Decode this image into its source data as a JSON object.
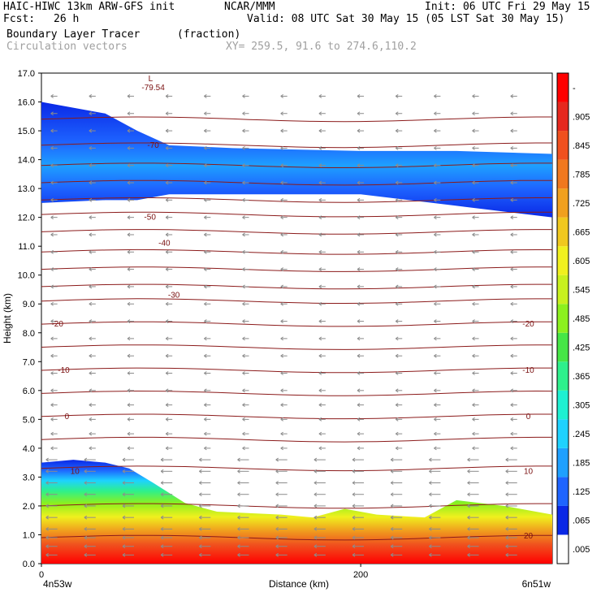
{
  "header": {
    "model": "HAIC-HIWC 13km ARW-GFS init",
    "org": "NCAR/MMM",
    "init": "Init: 06 UTC Fri 29 May 15",
    "fcst_label": "Fcst:",
    "fcst_value": "26 h",
    "valid": "Valid: 08 UTC Sat 30 May 15 (05 LST Sat 30 May 15)",
    "field": "Boundary Layer Tracer",
    "units": "(fraction)",
    "vectors": "Circulation vectors",
    "xy": "XY= 259.5, 91.6 to 274.6,110.2"
  },
  "chart_data": {
    "type": "heatmap",
    "title": "Boundary Layer Tracer",
    "xlabel": "Distance (km)",
    "ylabel": "Height (km)",
    "xlim": [
      0,
      320
    ],
    "ylim": [
      0.0,
      17.0
    ],
    "x_ticks": [
      0,
      200
    ],
    "y_ticks": [
      0.0,
      1.0,
      2.0,
      3.0,
      4.0,
      5.0,
      6.0,
      7.0,
      8.0,
      9.0,
      10.0,
      11.0,
      12.0,
      13.0,
      14.0,
      15.0,
      16.0,
      17.0
    ],
    "y_tick_labels": [
      "0.0",
      "1.0",
      "2.0",
      "3.0",
      "4.0",
      "5.0",
      "6.0",
      "7.0",
      "8.0",
      "9.0",
      "10.0",
      "11.0",
      "12.0",
      "13.0",
      "14.0",
      "15.0",
      "16.0",
      "17.0"
    ],
    "x_tick_labels": [
      "0",
      "200"
    ],
    "endpoint_labels": {
      "left": "4n53w",
      "right": "6n51w"
    },
    "colorbar": {
      "labels": [
        ".005",
        ".065",
        ".125",
        ".185",
        ".245",
        ".305",
        ".365",
        ".425",
        ".485",
        ".545",
        ".605",
        ".665",
        ".725",
        ".785",
        ".845",
        ".905",
        "-"
      ],
      "colors": [
        "#ffffff",
        "#0a28e6",
        "#1e64ff",
        "#1ea0ff",
        "#1ed2ff",
        "#1ef0d2",
        "#2ef08c",
        "#46e646",
        "#8cf01e",
        "#c8f01e",
        "#f0f01e",
        "#f0c81e",
        "#f0a01e",
        "#f0781e",
        "#f0501e",
        "#e6281e",
        "#ff0000"
      ]
    },
    "temperature_contours": {
      "units": "C",
      "levels": [
        {
          "label": "-79.54",
          "x": 70,
          "y": 16.5
        },
        {
          "label": "-70",
          "x": 70,
          "y": 14.5
        },
        {
          "label": "-50",
          "x": 68,
          "y": 12.0
        },
        {
          "label": "-40",
          "x": 77,
          "y": 11.1
        },
        {
          "label": "-30",
          "x": 83,
          "y": 9.3
        },
        {
          "label": "-20",
          "x": 10,
          "y": 8.3
        },
        {
          "label": "-20",
          "x": 305,
          "y": 8.3
        },
        {
          "label": "-10",
          "x": 14,
          "y": 6.7
        },
        {
          "label": "-10",
          "x": 305,
          "y": 6.7
        },
        {
          "label": "0",
          "x": 16,
          "y": 5.1
        },
        {
          "label": "0",
          "x": 305,
          "y": 5.1
        },
        {
          "label": "10",
          "x": 21,
          "y": 3.2
        },
        {
          "label": "10",
          "x": 305,
          "y": 3.2
        },
        {
          "label": "20",
          "x": 305,
          "y": 0.95
        }
      ],
      "low_marker": "L"
    },
    "tracer_layers": [
      {
        "name": "boundary layer",
        "top_x": [
          0,
          20,
          40,
          55,
          70,
          90,
          110,
          150,
          170,
          190,
          210,
          240,
          260,
          290,
          320
        ],
        "top_y": [
          3.5,
          3.6,
          3.5,
          3.3,
          2.8,
          2.1,
          1.8,
          1.7,
          1.6,
          1.9,
          1.7,
          1.6,
          2.2,
          2.0,
          1.7
        ]
      },
      {
        "name": "upper tracer",
        "x": [
          0,
          40,
          60,
          80,
          120,
          200,
          260,
          320
        ],
        "top": [
          16.0,
          15.6,
          15.0,
          14.5,
          14.4,
          14.3,
          14.3,
          14.2
        ],
        "bottom": [
          12.5,
          12.6,
          12.6,
          12.8,
          12.8,
          12.8,
          12.4,
          12.0
        ]
      }
    ],
    "vector_field": {
      "direction": "westward",
      "rows_km": [
        0.3,
        0.6,
        0.9,
        1.2,
        1.6,
        2.0,
        2.4,
        2.8,
        3.2,
        3.6,
        4.0,
        4.5,
        5.0,
        5.5,
        6.0,
        6.6,
        7.2,
        7.8,
        8.4,
        9.0,
        9.6,
        10.2,
        10.8,
        11.4,
        12.0,
        12.6,
        13.2,
        13.8,
        14.4,
        15.0,
        15.6,
        16.2
      ]
    }
  }
}
